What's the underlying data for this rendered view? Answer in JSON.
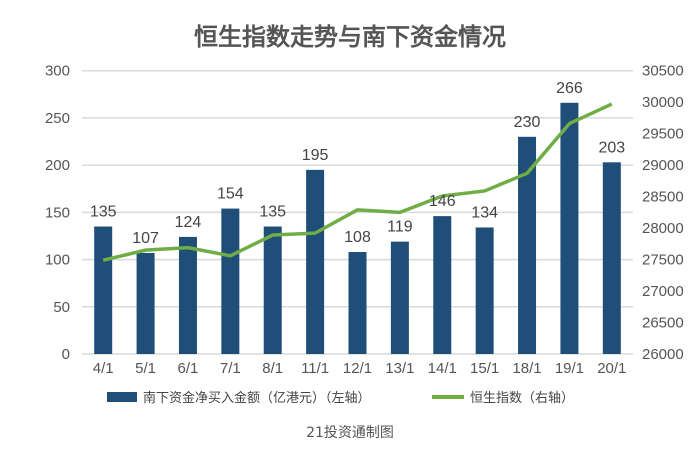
{
  "chart_data": {
    "type": "bar+line",
    "title": "恒生指数走势与南下资金情况",
    "categories": [
      "4/1",
      "5/1",
      "6/1",
      "7/1",
      "8/1",
      "11/1",
      "12/1",
      "13/1",
      "14/1",
      "15/1",
      "18/1",
      "19/1",
      "20/1"
    ],
    "series": [
      {
        "name": "南下资金净买入金额（亿港元）（左轴）",
        "type": "bar",
        "axis": "left",
        "color": "#1f4e79",
        "values": [
          135,
          107,
          124,
          154,
          135,
          195,
          108,
          119,
          146,
          134,
          230,
          266,
          203
        ]
      },
      {
        "name": "恒生指数（右轴）",
        "type": "line",
        "axis": "right",
        "color": "#70ad47",
        "values": [
          27490,
          27650,
          27690,
          27560,
          27890,
          27920,
          28290,
          28250,
          28510,
          28590,
          28870,
          29660,
          29970
        ]
      }
    ],
    "left_axis": {
      "ylim": [
        0,
        300
      ],
      "ticks": [
        "0",
        "50",
        "100",
        "150",
        "200",
        "250",
        "300"
      ]
    },
    "right_axis": {
      "ylim": [
        26000,
        30500
      ],
      "ticks": [
        "26000",
        "26500",
        "27000",
        "27500",
        "28000",
        "28500",
        "29000",
        "29500",
        "30000",
        "30500"
      ]
    },
    "grid": true,
    "legend": "bottom",
    "source_note": "21投资通制图"
  }
}
